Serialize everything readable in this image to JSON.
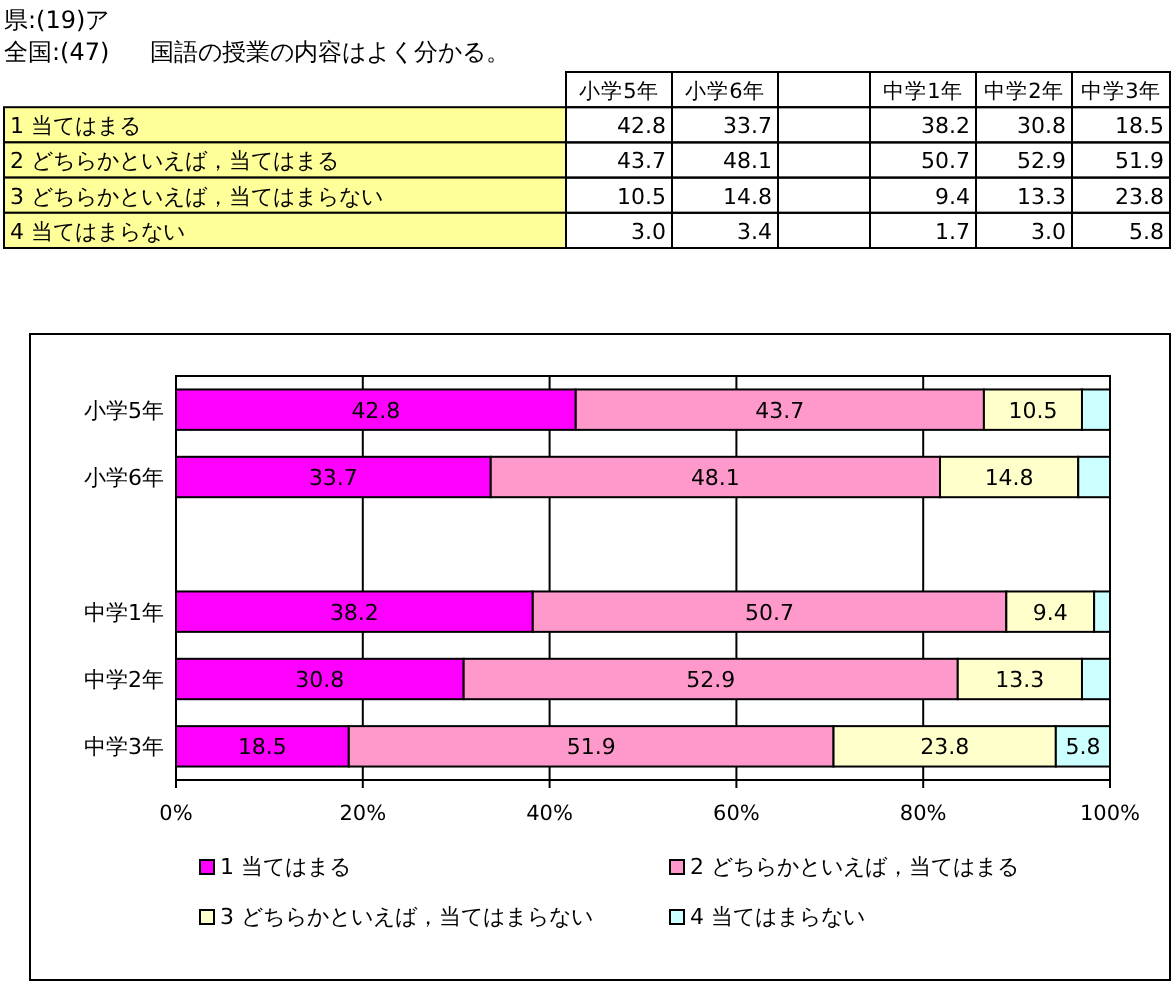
{
  "chart_data": [
    {
      "type": "other",
      "title": "国語の授業の内容はよく分かる。",
      "annotations": [
        "県:(19)ア",
        "全国:(47)"
      ],
      "categories": [
        "小学5年",
        "小学6年",
        null,
        "中学1年",
        "中学2年",
        "中学3年"
      ],
      "y_categories": [
        "1 当てはまる",
        "2 どちらかといえば，当てはまる",
        "3 どちらかといえば，当てはまらない",
        "4 当てはまらない"
      ],
      "cell_labels": [
        [
          "42.8",
          "33.7",
          null,
          "38.2",
          "30.8",
          "18.5"
        ],
        [
          "43.7",
          "48.1",
          null,
          "50.7",
          "52.9",
          "51.9"
        ],
        [
          "10.5",
          "14.8",
          null,
          "9.4",
          "13.3",
          "23.8"
        ],
        [
          "3.0",
          "3.4",
          null,
          "1.7",
          "3.0",
          "5.8"
        ]
      ]
    },
    {
      "type": "bar",
      "orientation": "horizontal",
      "stacked": true,
      "categories": [
        "小学5年",
        "小学6年",
        null,
        "中学1年",
        "中学2年",
        "中学3年"
      ],
      "series": [
        {
          "name": "1 当てはまる",
          "color": "#ff00ff",
          "values": [
            42.8,
            33.7,
            null,
            38.2,
            30.8,
            18.5
          ],
          "value_labels": [
            "42.8",
            "33.7",
            null,
            "38.2",
            "30.8",
            "18.5"
          ]
        },
        {
          "name": "2 どちらかといえば，当てはまる",
          "color": "#ff99cc",
          "values": [
            43.7,
            48.1,
            null,
            50.7,
            52.9,
            51.9
          ],
          "value_labels": [
            "43.7",
            "48.1",
            null,
            "50.7",
            "52.9",
            "51.9"
          ]
        },
        {
          "name": "3 どちらかといえば，当てはまらない",
          "color": "#ffffcc",
          "values": [
            10.5,
            14.8,
            null,
            9.4,
            13.3,
            23.8
          ],
          "value_labels": [
            "10.5",
            "14.8",
            null,
            "9.4",
            "13.3",
            "23.8"
          ]
        },
        {
          "name": "4 当てはまらない",
          "color": "#ccffff",
          "values": [
            3.0,
            3.4,
            null,
            1.7,
            3.0,
            5.8
          ],
          "value_labels": [
            null,
            null,
            null,
            null,
            null,
            "5.8"
          ]
        }
      ],
      "xlim": [
        0,
        100
      ],
      "xticks": [
        {
          "value": 0,
          "label": "0%"
        },
        {
          "value": 20,
          "label": "20%"
        },
        {
          "value": 40,
          "label": "40%"
        },
        {
          "value": 60,
          "label": "60%"
        },
        {
          "value": 80,
          "label": "80%"
        },
        {
          "value": 100,
          "label": "100%"
        }
      ],
      "grid": "x",
      "legend": "bottom"
    }
  ]
}
